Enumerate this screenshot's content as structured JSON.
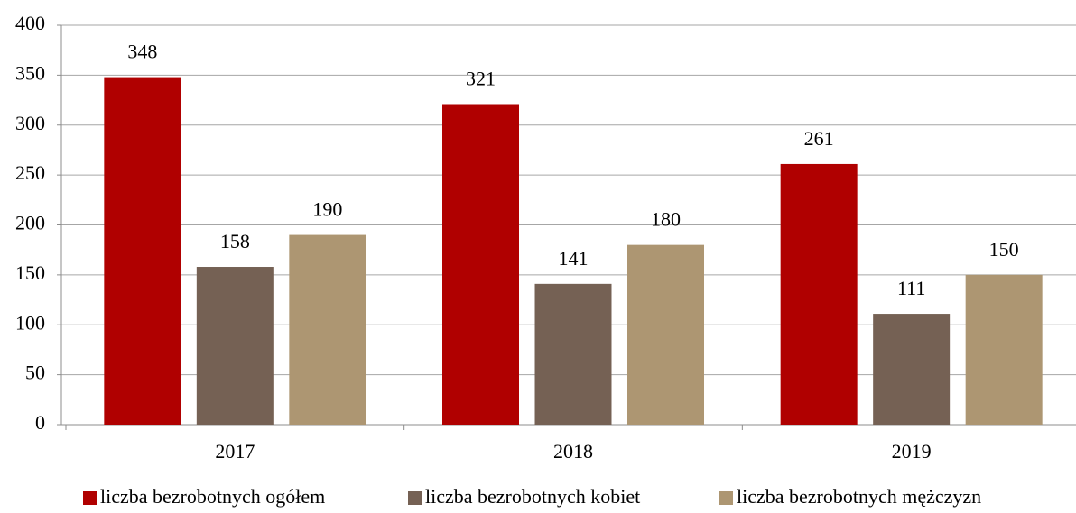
{
  "chart_data": {
    "type": "bar",
    "categories": [
      "2017",
      "2018",
      "2019"
    ],
    "series": [
      {
        "name": "liczba bezrobotnych ogółem",
        "color": "#b00000",
        "values": [
          348,
          321,
          261
        ]
      },
      {
        "name": "liczba bezrobotnych kobiet",
        "color": "#756154",
        "values": [
          158,
          141,
          111
        ]
      },
      {
        "name": "liczba bezrobotnych mężczyzn",
        "color": "#ad9672",
        "values": [
          190,
          180,
          150
        ]
      }
    ],
    "ylim": [
      0,
      400
    ],
    "yticks": [
      0,
      50,
      100,
      150,
      200,
      250,
      300,
      350,
      400
    ],
    "grid": true,
    "legend": "bottom"
  }
}
